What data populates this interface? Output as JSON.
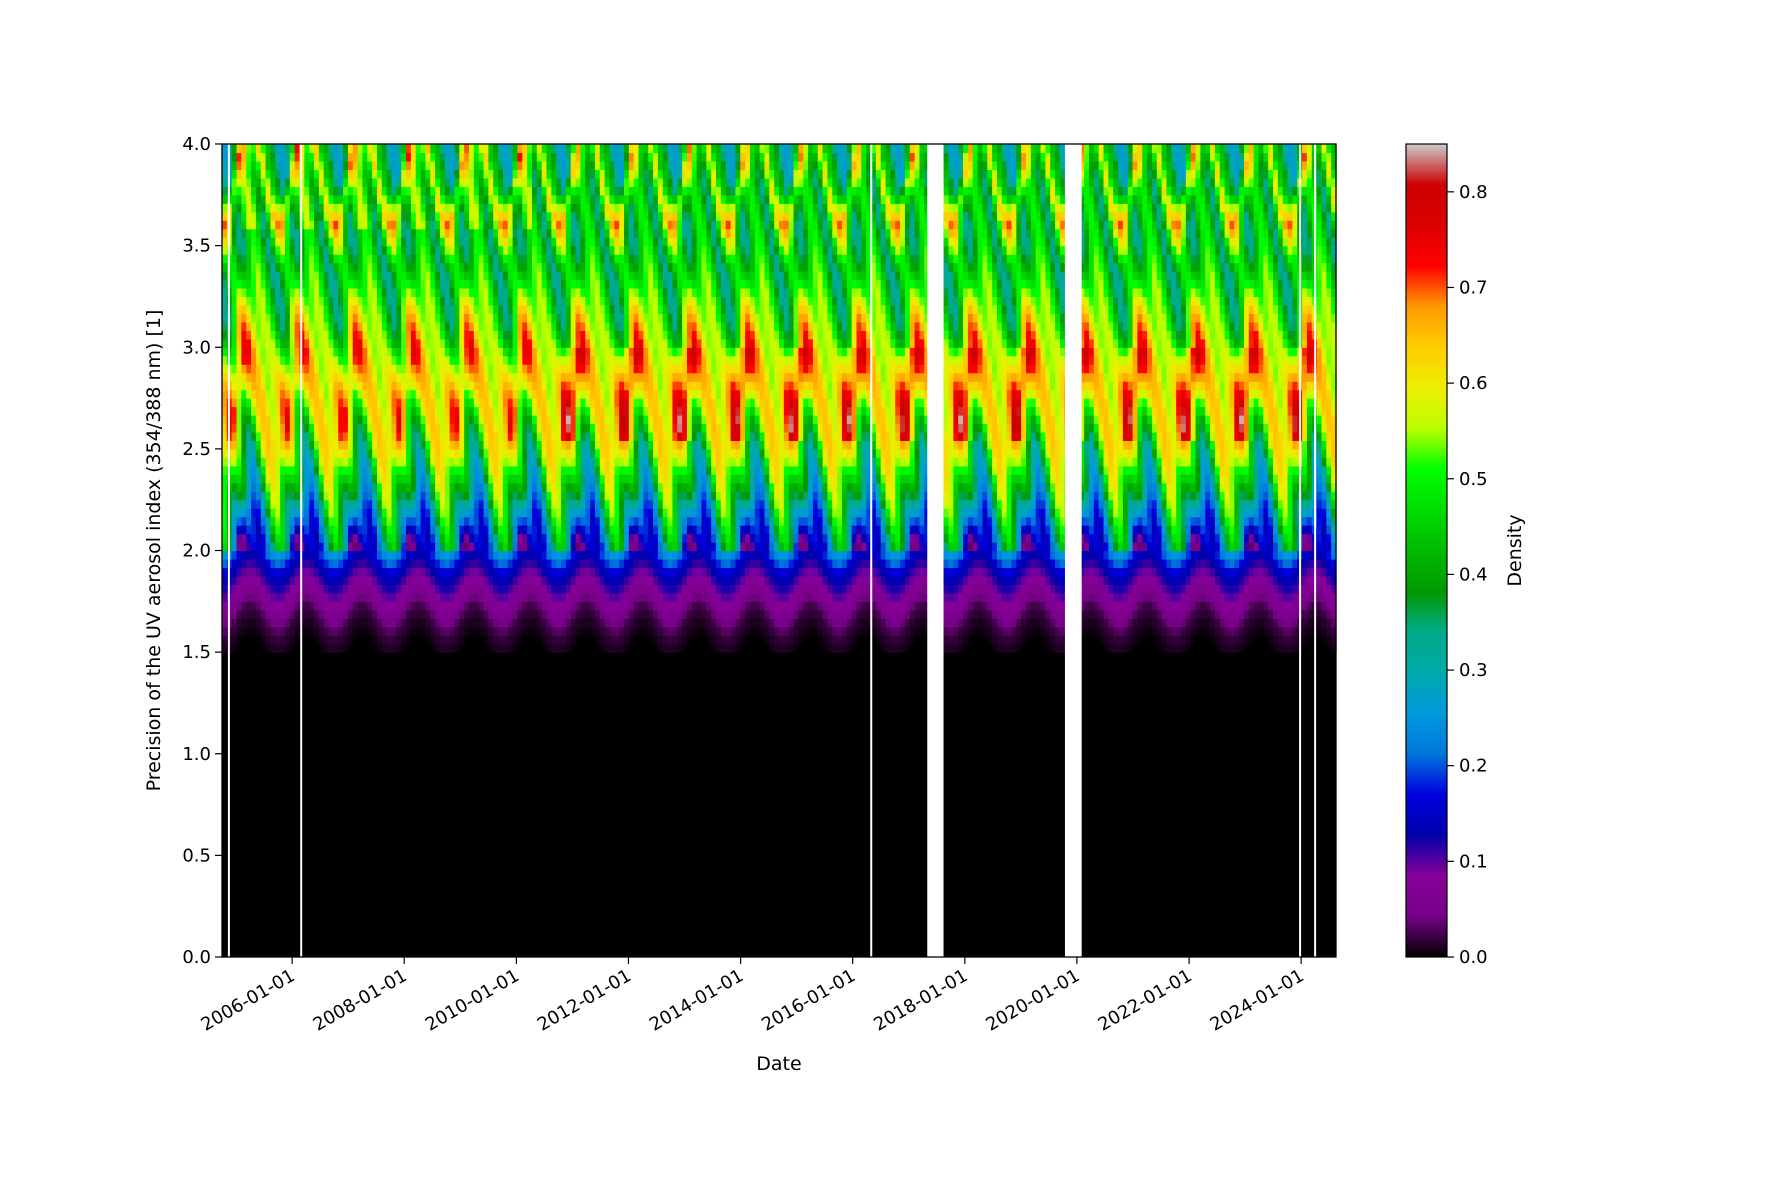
{
  "chart_data": {
    "type": "heatmap",
    "title": "",
    "xlabel": "Date",
    "ylabel": "Precision of the UV aerosol index (354/388 nm) [1]",
    "colorbar_label": "Density",
    "x_ticks": [
      "2006-01-01",
      "2008-01-01",
      "2010-01-01",
      "2012-01-01",
      "2014-01-01",
      "2016-01-01",
      "2018-01-01",
      "2020-01-01",
      "2022-01-01",
      "2024-01-01"
    ],
    "xlim": [
      "2004-10-01",
      "2024-08-15"
    ],
    "y_ticks": [
      "0.0",
      "0.5",
      "1.0",
      "1.5",
      "2.0",
      "2.5",
      "3.0",
      "3.5",
      "4.0"
    ],
    "ylim": [
      0.0,
      4.0
    ],
    "colorbar_ticks": [
      "0.0",
      "0.1",
      "0.2",
      "0.3",
      "0.4",
      "0.5",
      "0.6",
      "0.7",
      "0.8"
    ],
    "clim": [
      0.0,
      0.85
    ],
    "colormap": "nipy_spectral",
    "data_gaps": [
      [
        "2017-05-01",
        "2017-08-15"
      ],
      [
        "2019-10-15",
        "2020-02-01"
      ]
    ],
    "thin_gaps": [
      "2004-11-15",
      "2006-03-01",
      "2016-05-01",
      "2023-12-25",
      "2024-04-01"
    ],
    "density_profile": [
      {
        "precision": 0.0,
        "density": 0.0
      },
      {
        "precision": 1.5,
        "density": 0.0
      },
      {
        "precision": 1.65,
        "density": 0.02
      },
      {
        "precision": 1.8,
        "density": 0.08
      },
      {
        "precision": 1.95,
        "density": 0.15
      },
      {
        "precision": 2.1,
        "density": 0.3
      },
      {
        "precision": 2.4,
        "density": 0.45
      },
      {
        "precision": 2.75,
        "density": 0.68
      },
      {
        "precision": 3.0,
        "density": 0.6
      },
      {
        "precision": 3.3,
        "density": 0.42
      },
      {
        "precision": 3.6,
        "density": 0.4
      },
      {
        "precision": 3.85,
        "density": 0.62
      },
      {
        "precision": 4.0,
        "density": 0.35
      }
    ],
    "seasonal_cycle_years": 1.0
  }
}
